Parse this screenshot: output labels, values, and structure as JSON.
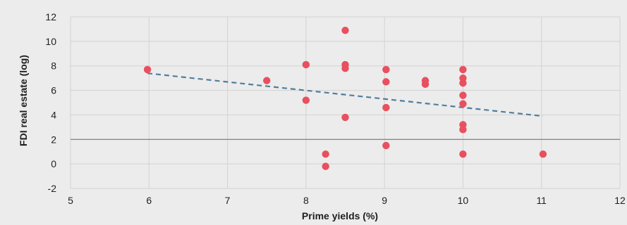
{
  "chart_data": {
    "type": "scatter",
    "title": "",
    "xlabel": "Prime yields (%)",
    "ylabel": "FDI real estate (log)",
    "xlim": [
      5,
      12
    ],
    "ylim": [
      -2,
      12
    ],
    "x_ticks": [
      "5",
      "6",
      "7",
      "8",
      "9",
      "10",
      "11",
      "12"
    ],
    "y_ticks": [
      "-2",
      "0",
      "2",
      "4",
      "6",
      "8",
      "10",
      "12"
    ],
    "grid": true,
    "legend": false,
    "series": [
      {
        "type": "scatter",
        "color": "#e8505f",
        "points": [
          {
            "x": 5.98,
            "y": 7.7
          },
          {
            "x": 7.5,
            "y": 6.8
          },
          {
            "x": 8.0,
            "y": 8.1
          },
          {
            "x": 8.0,
            "y": 5.2
          },
          {
            "x": 8.25,
            "y": 0.8
          },
          {
            "x": 8.25,
            "y": -0.2
          },
          {
            "x": 8.5,
            "y": 10.9
          },
          {
            "x": 8.5,
            "y": 8.1
          },
          {
            "x": 8.5,
            "y": 7.8
          },
          {
            "x": 8.5,
            "y": 3.8
          },
          {
            "x": 9.02,
            "y": 7.7
          },
          {
            "x": 9.02,
            "y": 6.7
          },
          {
            "x": 9.02,
            "y": 4.6
          },
          {
            "x": 9.02,
            "y": 1.5
          },
          {
            "x": 9.52,
            "y": 6.8
          },
          {
            "x": 9.52,
            "y": 6.5
          },
          {
            "x": 10.0,
            "y": 7.7
          },
          {
            "x": 10.0,
            "y": 7.0
          },
          {
            "x": 10.0,
            "y": 6.6
          },
          {
            "x": 10.0,
            "y": 5.6
          },
          {
            "x": 10.0,
            "y": 4.9
          },
          {
            "x": 10.0,
            "y": 3.2
          },
          {
            "x": 10.0,
            "y": 2.8
          },
          {
            "x": 10.0,
            "y": 0.8
          },
          {
            "x": 11.02,
            "y": 0.8
          }
        ]
      },
      {
        "type": "trendline",
        "style": "dashed",
        "color": "#4f7f9f",
        "points": [
          {
            "x": 5.98,
            "y": 7.4
          },
          {
            "x": 11.02,
            "y": 3.9
          }
        ]
      }
    ]
  }
}
